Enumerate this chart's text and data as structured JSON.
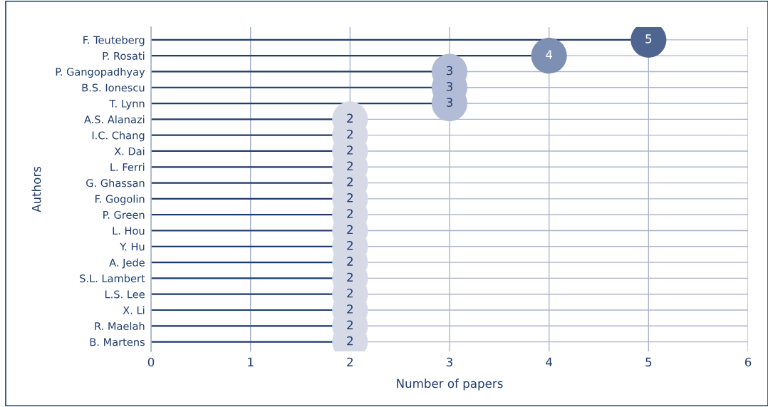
{
  "chart_data": {
    "type": "lollipop",
    "orientation": "horizontal",
    "xlabel": "Number of papers",
    "ylabel": "Authors",
    "categories": [
      "F. Teuteberg",
      "P. Rosati",
      "P. Gangopadhyay",
      "B.S. Ionescu",
      "T. Lynn",
      "A.S. Alanazi",
      "I.C. Chang",
      "X. Dai",
      "L. Ferri",
      "G. Ghassan",
      "F. Gogolin",
      "P. Green",
      "L. Hou",
      "Y. Hu",
      "A. Jede",
      "S.L. Lambert",
      "L.S. Lee",
      "X. Li",
      "R. Maelah",
      "B. Martens"
    ],
    "values": [
      5,
      4,
      3,
      3,
      3,
      2,
      2,
      2,
      2,
      2,
      2,
      2,
      2,
      2,
      2,
      2,
      2,
      2,
      2,
      2
    ],
    "colors": [
      "#4f6591",
      "#7d8fb3",
      "#b3bcd6",
      "#b3bcd6",
      "#b3bcd6",
      "#d5dae6",
      "#d5dae6",
      "#d5dae6",
      "#d5dae6",
      "#d5dae6",
      "#d5dae6",
      "#d5dae6",
      "#d5dae6",
      "#d5dae6",
      "#d5dae6",
      "#d5dae6",
      "#d5dae6",
      "#d5dae6",
      "#d5dae6",
      "#d5dae6"
    ],
    "color": "#1f3d6e",
    "xlim": [
      0,
      6
    ],
    "xticks": [
      0,
      1,
      2,
      3,
      4,
      5,
      6
    ],
    "grid": true,
    "data_labels": true,
    "marker": "circle"
  }
}
